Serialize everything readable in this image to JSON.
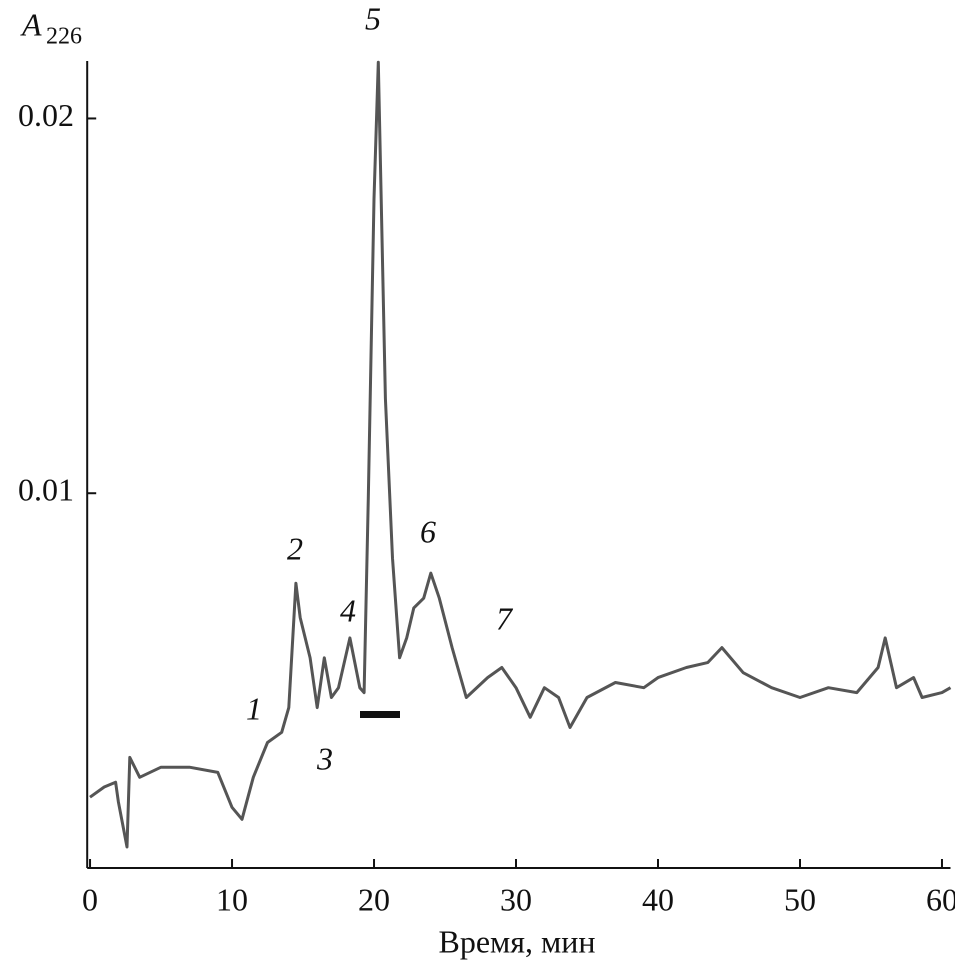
{
  "chart_data": {
    "type": "line",
    "xlabel": "Время, мин",
    "ylabel": "A",
    "ylabel_subscript": "226",
    "annotations": [
      "1",
      "2",
      "3",
      "4",
      "5",
      "6",
      "7"
    ],
    "xlim": [
      -0.2,
      60.6
    ],
    "ylim": [
      0,
      0.0218
    ],
    "xticks": [
      0,
      10,
      20,
      30,
      40,
      50,
      60
    ],
    "yticks": [
      0.01,
      0.02
    ],
    "color": "#555555",
    "x": [
      0,
      1,
      1.8,
      2,
      2.6,
      2.8,
      3.5,
      5,
      7,
      9,
      10,
      10.7,
      11.5,
      12.5,
      13.5,
      14,
      14.5,
      14.8,
      15.5,
      16,
      16.5,
      17,
      17.5,
      18.3,
      19,
      19.3,
      19.6,
      20,
      20.3,
      20.8,
      21.3,
      21.8,
      22.3,
      22.8,
      23.5,
      24,
      24.6,
      25.5,
      26.5,
      28,
      29,
      30,
      31,
      32,
      33,
      33.8,
      35,
      37,
      39,
      40,
      42,
      43.5,
      44.5,
      46,
      48,
      50,
      52,
      54,
      55.5,
      56,
      56.8,
      58,
      58.6,
      60,
      60.6
    ],
    "values": [
      0.00189,
      0.00216,
      0.00229,
      0.00176,
      0.00056,
      0.00295,
      0.00242,
      0.00269,
      0.00269,
      0.00255,
      0.00162,
      0.0013,
      0.00242,
      0.00335,
      0.00362,
      0.00428,
      0.0076,
      0.00668,
      0.00561,
      0.00428,
      0.00561,
      0.00455,
      0.00481,
      0.00614,
      0.00481,
      0.00468,
      0.00987,
      0.01785,
      0.0215,
      0.01253,
      0.00827,
      0.00561,
      0.00614,
      0.00694,
      0.0072,
      0.00787,
      0.0072,
      0.00588,
      0.00455,
      0.00508,
      0.00535,
      0.00481,
      0.00402,
      0.00481,
      0.00455,
      0.00375,
      0.00455,
      0.00495,
      0.00481,
      0.00508,
      0.00535,
      0.00548,
      0.00588,
      0.00521,
      0.00481,
      0.00455,
      0.00481,
      0.00468,
      0.00535,
      0.00614,
      0.00481,
      0.00508,
      0.00455,
      0.00468,
      0.00481
    ]
  }
}
